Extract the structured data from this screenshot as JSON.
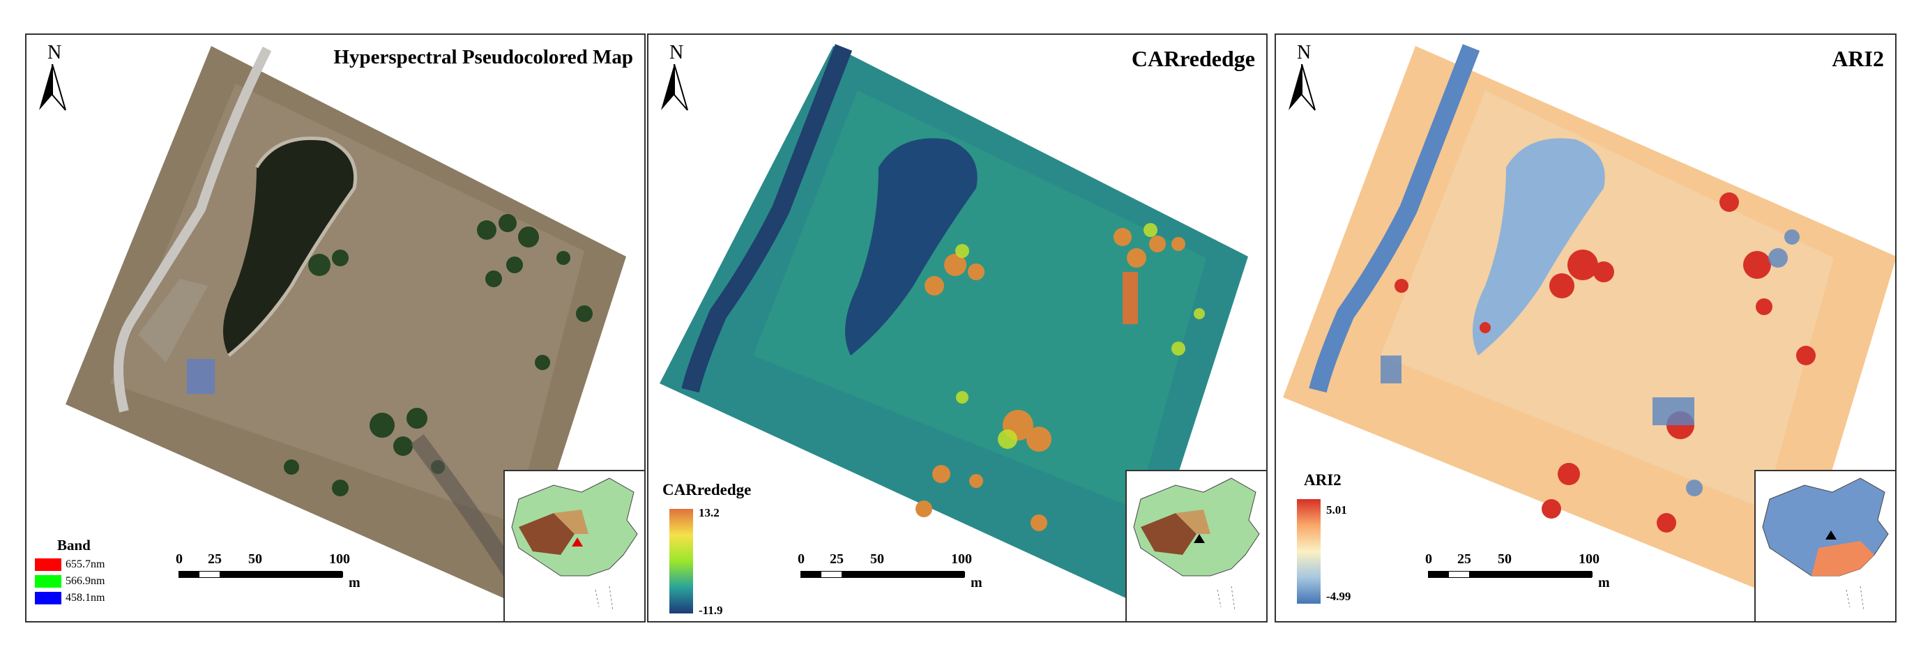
{
  "panel1": {
    "title": "Hyperspectral Pseudocolored Map",
    "north": "N",
    "legend": {
      "title": "Band",
      "items": [
        {
          "label": "655.7nm",
          "color": "#ff0000"
        },
        {
          "label": "566.9nm",
          "color": "#00ff00"
        },
        {
          "label": "458.1nm",
          "color": "#0000ff"
        }
      ]
    },
    "scale": {
      "ticks": [
        "0",
        "25",
        "50",
        "100"
      ],
      "unit": "m"
    }
  },
  "panel2": {
    "title": "CARrededge",
    "north": "N",
    "colorbar": {
      "title": "CARrededge",
      "max": "13.2",
      "min": "-11.9",
      "colors": [
        "#1f3a7a",
        "#2aa39a",
        "#9be62b",
        "#f5e14b",
        "#e0723b"
      ]
    },
    "scale": {
      "ticks": [
        "0",
        "25",
        "50",
        "100"
      ],
      "unit": "m"
    }
  },
  "panel3": {
    "title": "ARI2",
    "north": "N",
    "colorbar": {
      "title": "ARI2",
      "max": "5.01",
      "min": "-4.99",
      "colors": [
        "#d73027",
        "#f9a869",
        "#fbf1c3",
        "#a6c7e0",
        "#4575b4"
      ]
    },
    "scale": {
      "ticks": [
        "0",
        "25",
        "50",
        "100"
      ],
      "unit": "m"
    }
  }
}
